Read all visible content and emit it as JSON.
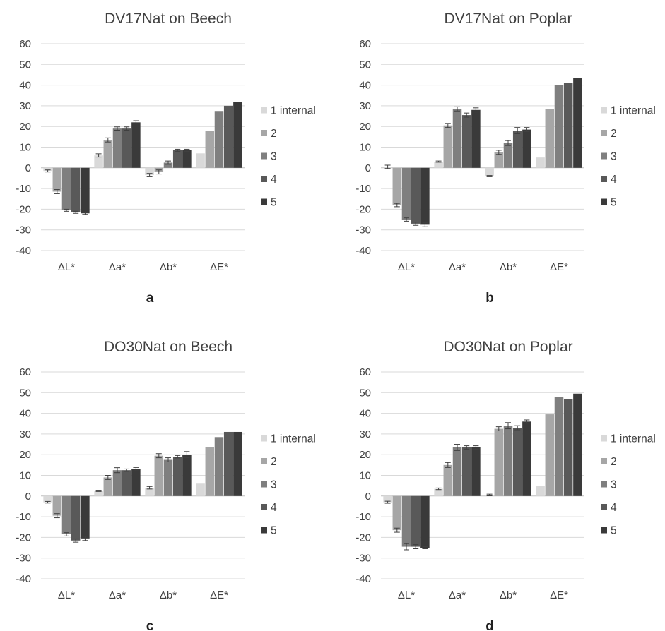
{
  "chart_data": [
    {
      "type": "bar",
      "title": "DV17Nat on Beech",
      "panel_label": "a",
      "categories": [
        "ΔL*",
        "Δa*",
        "Δb*",
        "ΔE*"
      ],
      "ylim": [
        -40,
        60
      ],
      "yticks": [
        60,
        50,
        40,
        30,
        20,
        10,
        0,
        -10,
        -20,
        -30,
        -40
      ],
      "grid": true,
      "legend_position": "right",
      "series": [
        {
          "name": "1 internal",
          "color": "#d9d9d9",
          "values": [
            -1.5,
            6,
            -3.5,
            7
          ],
          "errors": [
            0.5,
            0.8,
            0.8,
            null
          ]
        },
        {
          "name": "2",
          "color": "#a6a6a6",
          "values": [
            -11.5,
            13.5,
            -2,
            18
          ],
          "errors": [
            1,
            1,
            1,
            null
          ]
        },
        {
          "name": "3",
          "color": "#7f7f7f",
          "values": [
            -20.5,
            19,
            2.5,
            27.5
          ],
          "errors": [
            0.5,
            0.8,
            0.8,
            null
          ]
        },
        {
          "name": "4",
          "color": "#595959",
          "values": [
            -21.5,
            19,
            8.5,
            30
          ],
          "errors": [
            0.5,
            0.8,
            0.5,
            null
          ]
        },
        {
          "name": "5",
          "color": "#3a3a3a",
          "values": [
            -22,
            22,
            8.5,
            32
          ],
          "errors": [
            0.5,
            0.8,
            0.5,
            null
          ]
        }
      ]
    },
    {
      "type": "bar",
      "title": "DV17Nat on Poplar",
      "panel_label": "b",
      "categories": [
        "ΔL*",
        "Δa*",
        "Δb*",
        "ΔE*"
      ],
      "ylim": [
        -40,
        60
      ],
      "yticks": [
        60,
        50,
        40,
        30,
        20,
        10,
        0,
        -10,
        -20,
        -30,
        -40
      ],
      "grid": true,
      "legend_position": "right",
      "series": [
        {
          "name": "1 internal",
          "color": "#d9d9d9",
          "values": [
            0.5,
            3,
            -4,
            5
          ],
          "errors": [
            0.8,
            0.3,
            0.3,
            null
          ]
        },
        {
          "name": "2",
          "color": "#a6a6a6",
          "values": [
            -18,
            20.5,
            7.5,
            28.5
          ],
          "errors": [
            0.8,
            1,
            1,
            null
          ]
        },
        {
          "name": "3",
          "color": "#7f7f7f",
          "values": [
            -25,
            28.5,
            12,
            40
          ],
          "errors": [
            0.8,
            1,
            1.2,
            null
          ]
        },
        {
          "name": "4",
          "color": "#595959",
          "values": [
            -27,
            25.5,
            18,
            41
          ],
          "errors": [
            0.8,
            1,
            1.5,
            null
          ]
        },
        {
          "name": "5",
          "color": "#3a3a3a",
          "values": [
            -27.5,
            28,
            18.5,
            43.5
          ],
          "errors": [
            1,
            1,
            1,
            null
          ]
        }
      ]
    },
    {
      "type": "bar",
      "title": "DO30Nat on Beech",
      "panel_label": "c",
      "categories": [
        "ΔL*",
        "Δa*",
        "Δb*",
        "ΔE*"
      ],
      "ylim": [
        -40,
        60
      ],
      "yticks": [
        60,
        50,
        40,
        30,
        20,
        10,
        0,
        -10,
        -20,
        -30,
        -40
      ],
      "grid": true,
      "legend_position": "right",
      "series": [
        {
          "name": "1 internal",
          "color": "#d9d9d9",
          "values": [
            -3,
            2.5,
            4,
            6
          ],
          "errors": [
            0.4,
            0.3,
            0.6,
            null
          ]
        },
        {
          "name": "2",
          "color": "#a6a6a6",
          "values": [
            -9.5,
            9,
            19.5,
            23.5
          ],
          "errors": [
            1,
            1,
            1,
            null
          ]
        },
        {
          "name": "3",
          "color": "#7f7f7f",
          "values": [
            -18.5,
            12.5,
            17.5,
            28.5
          ],
          "errors": [
            0.8,
            1.2,
            1,
            null
          ]
        },
        {
          "name": "4",
          "color": "#595959",
          "values": [
            -21.5,
            12.5,
            19,
            31
          ],
          "errors": [
            0.8,
            0.6,
            0.6,
            null
          ]
        },
        {
          "name": "5",
          "color": "#3a3a3a",
          "values": [
            -20.5,
            13,
            20,
            31
          ],
          "errors": [
            1,
            0.8,
            1.5,
            null
          ]
        }
      ]
    },
    {
      "type": "bar",
      "title": "DO30Nat on Poplar",
      "panel_label": "d",
      "categories": [
        "ΔL*",
        "Δa*",
        "Δb*",
        "ΔE*"
      ],
      "ylim": [
        -40,
        60
      ],
      "yticks": [
        60,
        50,
        40,
        30,
        20,
        10,
        0,
        -10,
        -20,
        -30,
        -40
      ],
      "grid": true,
      "legend_position": "right",
      "series": [
        {
          "name": "1 internal",
          "color": "#d9d9d9",
          "values": [
            -3,
            3.5,
            0.5,
            5
          ],
          "errors": [
            0.5,
            0.4,
            0.4,
            null
          ]
        },
        {
          "name": "2",
          "color": "#a6a6a6",
          "values": [
            -16.5,
            15,
            32.5,
            39.5
          ],
          "errors": [
            1,
            1.2,
            1,
            null
          ]
        },
        {
          "name": "3",
          "color": "#7f7f7f",
          "values": [
            -24.5,
            23.5,
            34,
            48
          ],
          "errors": [
            1.5,
            1.5,
            1.5,
            null
          ]
        },
        {
          "name": "4",
          "color": "#595959",
          "values": [
            -24.5,
            23.5,
            33,
            47
          ],
          "errors": [
            1,
            0.8,
            1,
            null
          ]
        },
        {
          "name": "5",
          "color": "#3a3a3a",
          "values": [
            -25,
            23.5,
            36,
            49.5
          ],
          "errors": [
            0.5,
            0.8,
            0.8,
            null
          ]
        }
      ]
    }
  ]
}
